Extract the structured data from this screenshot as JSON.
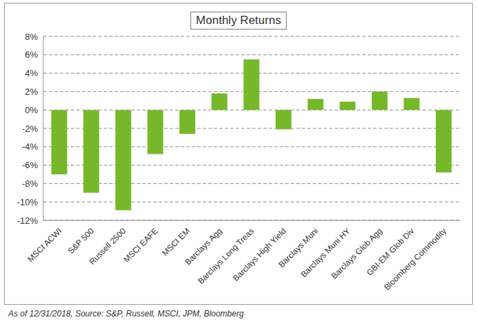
{
  "chart_data": {
    "type": "bar",
    "title": "Monthly Returns",
    "categories": [
      "MSCI ACWI",
      "S&P 500",
      "Russell 2500",
      "MSCI EAFE",
      "MSCI EM",
      "Barclays Agg",
      "Barclays Long Treas",
      "Barclays High Yield",
      "Barclays Muni",
      "Barclays Muni HY",
      "Barclays Glob Agg",
      "GBI-EM Glob Div",
      "Bloomberg Commodity"
    ],
    "values": [
      -7.0,
      -9.0,
      -10.9,
      -4.8,
      -2.6,
      1.8,
      5.5,
      -2.1,
      1.2,
      0.9,
      2.0,
      1.3,
      -6.8
    ],
    "color": "#77b82a",
    "ylim": [
      -12,
      8
    ],
    "yticks": [
      {
        "value": -12,
        "label": "-12%"
      },
      {
        "value": -10,
        "label": "-10%"
      },
      {
        "value": -8,
        "label": "-8%"
      },
      {
        "value": -6,
        "label": "-6%"
      },
      {
        "value": -4,
        "label": "-4%"
      },
      {
        "value": -2,
        "label": "-2%"
      },
      {
        "value": 0,
        "label": "0%"
      },
      {
        "value": 2,
        "label": "2%"
      },
      {
        "value": 4,
        "label": "4%"
      },
      {
        "value": 6,
        "label": "6%"
      },
      {
        "value": 8,
        "label": "8%"
      }
    ],
    "grid": true,
    "annotations": [
      "As of 12/31/2018, Source: S&P, Russell, MSCI, JPM, Bloomberg"
    ]
  }
}
